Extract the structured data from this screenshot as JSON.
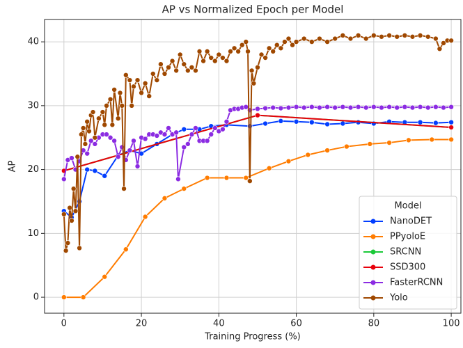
{
  "chart_data": {
    "type": "line",
    "title": "AP vs Normalized Epoch per Model",
    "x_label": "Training Progress (%)",
    "y_label": "AP",
    "xlim": [
      -5,
      102.5
    ],
    "ylim": [
      -2.5,
      43.5
    ],
    "xticks": [
      0,
      20,
      40,
      60,
      80,
      100
    ],
    "yticks": [
      0,
      10,
      20,
      30,
      40
    ],
    "grid": true,
    "legend_title": "Model",
    "legend_loc": "lower right",
    "series": [
      {
        "name": "NanoDET",
        "color": "#023eff",
        "x": [
          0,
          2,
          4,
          6,
          8,
          10.5,
          14,
          17,
          20,
          24,
          28,
          31,
          35,
          38,
          42,
          48,
          52,
          56,
          60,
          64,
          68,
          72,
          76,
          80,
          84,
          88,
          92,
          96,
          100
        ],
        "values": [
          13.5,
          12.5,
          15,
          20,
          19.8,
          19,
          22.2,
          23,
          22.5,
          24,
          25.5,
          26.3,
          26.3,
          26.8,
          27,
          26.8,
          27.2,
          27.6,
          27.5,
          27.4,
          27.1,
          27.2,
          27.4,
          27.2,
          27.5,
          27.4,
          27.4,
          27.3,
          27.4
        ]
      },
      {
        "name": "PPyoloE",
        "color": "#ff7c00",
        "x": [
          0,
          5,
          10.5,
          16,
          21,
          26,
          31,
          37,
          42,
          47,
          53,
          58,
          63,
          68,
          73,
          79,
          84,
          89,
          95,
          100
        ],
        "values": [
          0,
          0,
          3.2,
          7.5,
          12.6,
          15.5,
          17,
          18.7,
          18.7,
          18.7,
          20.2,
          21.3,
          22.3,
          23,
          23.6,
          24,
          24.2,
          24.6,
          24.7,
          24.7
        ]
      },
      {
        "name": "SRCNN",
        "color": "#1ac938",
        "x": [
          0,
          50,
          100
        ],
        "values": [
          19.8,
          28.5,
          26.6
        ]
      },
      {
        "name": "SSD300",
        "color": "#e8000b",
        "x": [
          0,
          50,
          100
        ],
        "values": [
          19.8,
          28.5,
          26.6
        ]
      },
      {
        "name": "FasterRCNN",
        "color": "#8b2be2",
        "x": [
          0,
          1,
          2,
          3,
          4,
          5,
          6,
          7,
          8,
          9,
          10,
          11,
          12,
          13,
          14,
          15,
          16,
          17,
          18,
          19,
          20,
          21,
          22,
          23,
          24,
          25,
          26,
          27,
          28,
          29,
          29.5,
          31,
          32,
          33,
          34,
          35,
          36,
          37,
          38,
          39,
          40,
          41,
          42,
          43,
          44,
          45,
          46,
          47,
          48,
          50,
          52,
          54,
          56,
          58,
          60,
          62,
          64,
          66,
          68,
          70,
          72,
          74,
          76,
          78,
          80,
          82,
          84,
          86,
          88,
          90,
          92,
          94,
          96,
          98,
          100
        ],
        "values": [
          18.5,
          21.5,
          21.8,
          20,
          21.3,
          23,
          22.5,
          24.5,
          24,
          25,
          25.5,
          25.5,
          25,
          24.5,
          22,
          23.5,
          21.5,
          23,
          24.5,
          20.5,
          25,
          24.8,
          25.5,
          25.5,
          25.3,
          25.8,
          25.5,
          26.5,
          25.5,
          25.8,
          18.5,
          23.5,
          24,
          25.5,
          26.5,
          24.5,
          24.5,
          24.5,
          25.5,
          26.5,
          26,
          26.3,
          27.5,
          29.3,
          29.5,
          29.5,
          29.7,
          29.8,
          29.3,
          29.5,
          29.6,
          29.7,
          29.6,
          29.7,
          29.8,
          29.7,
          29.8,
          29.7,
          29.8,
          29.7,
          29.8,
          29.7,
          29.8,
          29.7,
          29.8,
          29.7,
          29.8,
          29.7,
          29.8,
          29.7,
          29.8,
          29.7,
          29.8,
          29.7,
          29.8
        ]
      },
      {
        "name": "Yolo",
        "color": "#9f4800",
        "x": [
          0,
          0.5,
          1,
          1.5,
          2,
          2.5,
          3,
          3.5,
          4,
          4.5,
          5,
          5.5,
          6,
          6.5,
          7,
          7.5,
          8,
          9,
          10,
          10.5,
          11,
          12,
          12.5,
          13,
          14,
          14.5,
          15,
          15.5,
          16,
          17,
          17.5,
          18,
          19,
          20,
          21,
          22,
          23,
          24,
          25,
          26,
          27,
          28,
          29,
          30,
          31,
          32,
          33,
          34,
          35,
          36,
          37,
          38,
          39,
          40,
          41,
          42,
          43,
          44,
          45,
          46,
          47,
          47.5,
          48,
          48.5,
          49,
          50,
          51,
          52,
          53,
          54,
          55,
          56,
          57,
          58,
          59,
          60,
          62,
          64,
          66,
          68,
          70,
          72,
          74,
          76,
          78,
          80,
          82,
          84,
          86,
          88,
          90,
          92,
          94,
          96,
          97,
          98,
          99,
          100
        ],
        "values": [
          13,
          7.3,
          8.5,
          14,
          12,
          17,
          13.5,
          22,
          7.7,
          25.5,
          26.5,
          24,
          27.5,
          26,
          28.5,
          29,
          25,
          28,
          29,
          27,
          30,
          31,
          27,
          32.5,
          28,
          32,
          30,
          17,
          34.8,
          34,
          30,
          33,
          34,
          32,
          33.5,
          31.5,
          35,
          34,
          36.5,
          35,
          36,
          37,
          35.5,
          38,
          36.5,
          35.5,
          36,
          35.5,
          38.5,
          37,
          38.5,
          37.5,
          37,
          38,
          37.5,
          37,
          38.5,
          39,
          38.5,
          39.5,
          40,
          38.5,
          18.2,
          35.5,
          33.5,
          36,
          38,
          37.5,
          39,
          38.5,
          39.5,
          39,
          40,
          40.5,
          39.5,
          40,
          40.5,
          40,
          40.5,
          40,
          40.5,
          41,
          40.5,
          41,
          40.5,
          41,
          40.8,
          41,
          40.8,
          41,
          40.8,
          41,
          40.8,
          40.5,
          38.9,
          39.8,
          40.2,
          40.2
        ]
      }
    ]
  }
}
